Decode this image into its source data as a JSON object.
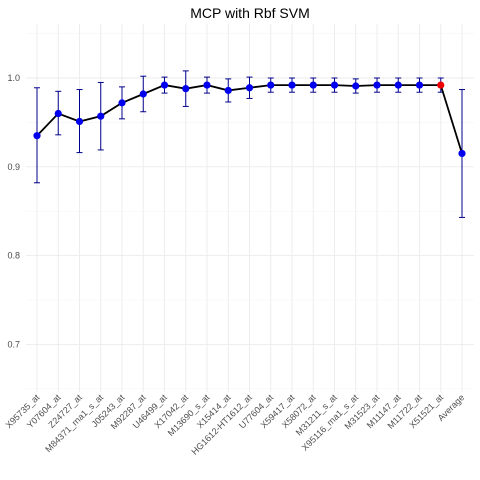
{
  "chart_data": {
    "type": "line",
    "title": "MCP with Rbf SVM",
    "xlabel": "",
    "ylabel": "",
    "ylim": [
      0.64,
      1.06
    ],
    "yticks": [
      0.7,
      0.8,
      0.9,
      1.0
    ],
    "ytick_labels": [
      "0.7",
      "0.8",
      "0.9",
      "1.0"
    ],
    "grid": true,
    "legend": "none",
    "categories": [
      "X95735_at",
      "Y07604_at",
      "Z24727_at",
      "M84371_rna1_s_at",
      "J05243_at",
      "M92287_at",
      "U46499_at",
      "X17042_at",
      "M13690_s_at",
      "X15414_at",
      "HG1612-HT1612_at",
      "U77604_at",
      "X59417_at",
      "X58072_at",
      "M31211_s_at",
      "X95116_rna1_s_at",
      "M31523_at",
      "M11147_at",
      "M11722_at",
      "X51521_at",
      "Average"
    ],
    "series": [
      {
        "values": [
          0.935,
          0.96,
          0.951,
          0.957,
          0.972,
          0.982,
          0.992,
          0.988,
          0.992,
          0.986,
          0.989,
          0.992,
          0.992,
          0.992,
          0.992,
          0.991,
          0.992,
          0.992,
          0.992,
          0.992,
          0.915
        ],
        "lower": [
          0.882,
          0.936,
          0.916,
          0.919,
          0.954,
          0.962,
          0.983,
          0.968,
          0.983,
          0.973,
          0.977,
          0.984,
          0.984,
          0.984,
          0.984,
          0.983,
          0.984,
          0.984,
          0.984,
          0.984,
          0.843
        ],
        "upper": [
          0.989,
          0.985,
          0.987,
          0.995,
          0.99,
          1.002,
          1.001,
          1.008,
          1.001,
          0.999,
          1.001,
          1.0,
          1.0,
          1.0,
          1.0,
          0.999,
          1.0,
          1.0,
          1.0,
          1.0,
          0.987
        ],
        "highlight_index": 19
      }
    ],
    "colors": {
      "line": "#000000",
      "point": "#0000ee",
      "highlight": "#ee0000",
      "errorbar": "#00008b"
    }
  }
}
